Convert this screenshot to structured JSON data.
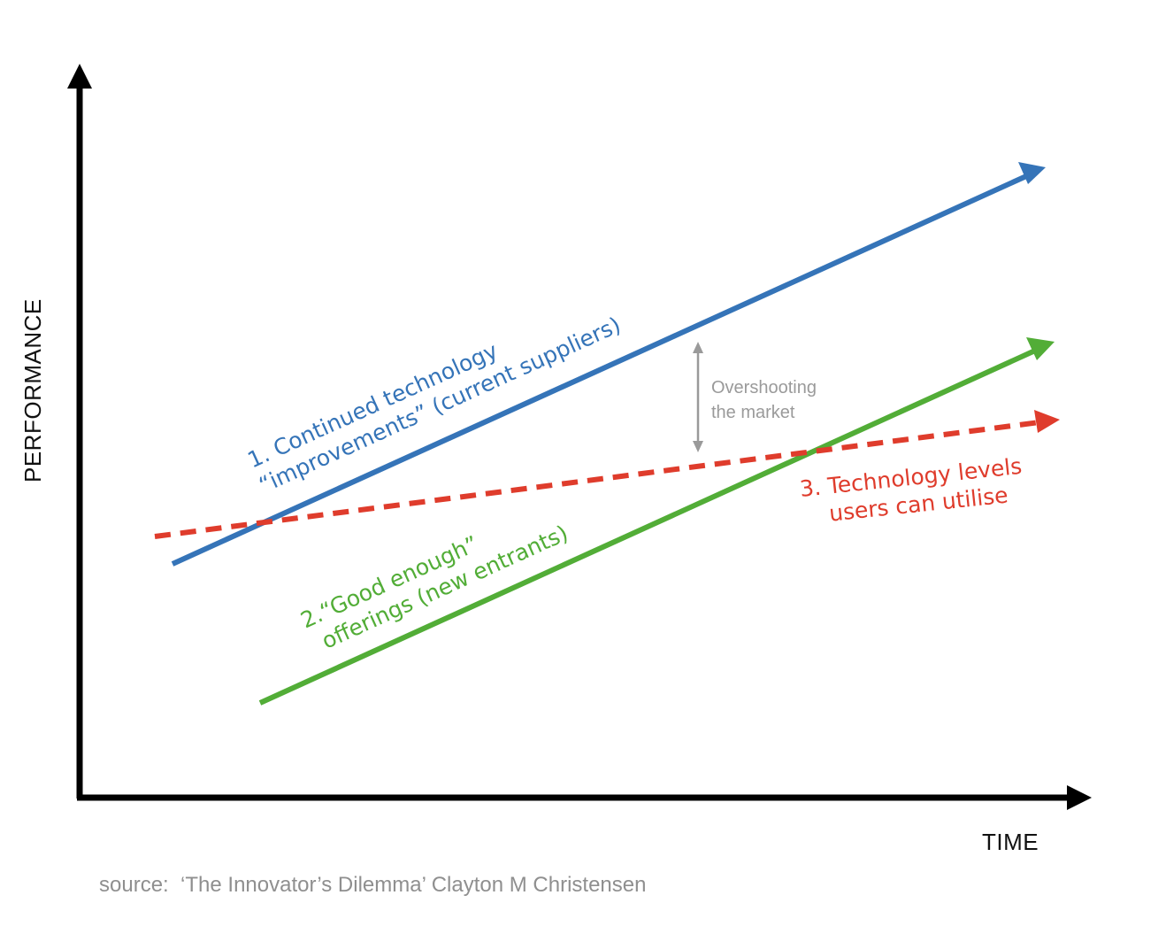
{
  "axes": {
    "y_label": "PERFORMANCE",
    "x_label": "TIME"
  },
  "lines": {
    "technology_improvements": {
      "label_line1": "1. Continued technology",
      "label_line2": "“improvements” (current suppliers)",
      "color": "#3574b8"
    },
    "good_enough": {
      "label_line1": "2.“Good enough”",
      "label_line2": "offerings (new entrants)",
      "color": "#52ad37"
    },
    "user_levels": {
      "label_line1": "3. Technology levels",
      "label_line2": "users can utilise",
      "color": "#df3c2c"
    }
  },
  "overshoot": {
    "line1": "Overshooting",
    "line2": "the market",
    "color": "#9a9a9a"
  },
  "source": "source:  ‘The Innovator’s Dilemma’ Clayton M Christensen",
  "colors": {
    "axis": "#000000"
  }
}
